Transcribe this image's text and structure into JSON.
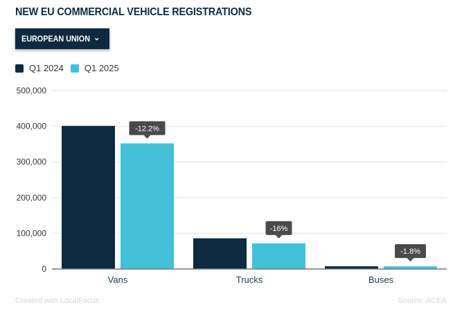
{
  "chart_data": {
    "type": "bar",
    "title": "NEW EU COMMERCIAL VEHICLE REGISTRATIONS",
    "categories": [
      "Vans",
      "Trucks",
      "Buses"
    ],
    "series": [
      {
        "name": "Q1 2024",
        "color": "#0d2a40",
        "values": [
          401000,
          86000,
          7500
        ]
      },
      {
        "name": "Q1 2025",
        "color": "#43c1d9",
        "values": [
          352000,
          72000,
          7400
        ]
      }
    ],
    "annotations": [
      "-12.2%",
      "-16%",
      "-1.8%"
    ],
    "yticks": [
      "0",
      "100,000",
      "200,000",
      "300,000",
      "400,000",
      "500,000"
    ],
    "ylim": [
      0,
      500000
    ],
    "grid": true,
    "legend": "top-left"
  },
  "filter": {
    "selected": "EUROPEAN UNION",
    "icon": "chevron-down-icon"
  },
  "footer": {
    "credit": "Created with LocalFocus",
    "source": "Source: ACEA"
  }
}
